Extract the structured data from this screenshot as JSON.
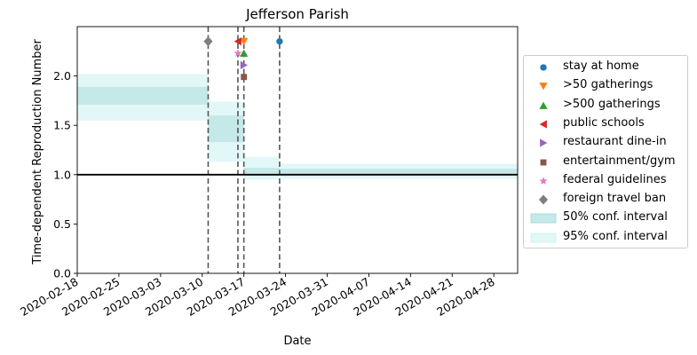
{
  "chart_data": {
    "type": "line",
    "title": "Jefferson Parish",
    "xlabel": "Date",
    "ylabel": "Time-dependent Reproduction Number",
    "x_range": [
      "2020-02-18",
      "2020-05-02"
    ],
    "ylim": [
      0.0,
      2.5
    ],
    "x_ticks": [
      "2020-02-18",
      "2020-02-25",
      "2020-03-03",
      "2020-03-10",
      "2020-03-17",
      "2020-03-24",
      "2020-03-31",
      "2020-04-07",
      "2020-04-14",
      "2020-04-21",
      "2020-04-28"
    ],
    "y_ticks": [
      "0.0",
      "0.5",
      "1.0",
      "1.5",
      "2.0"
    ],
    "reference_line": 1.0,
    "grid": false,
    "legend_position": "right, outside plot",
    "segments": [
      {
        "start": "2020-02-18",
        "end": "2020-03-11",
        "ci50": [
          1.71,
          1.89
        ],
        "ci95": [
          1.55,
          2.02
        ]
      },
      {
        "start": "2020-03-11",
        "end": "2020-03-17",
        "ci50": [
          1.33,
          1.6
        ],
        "ci95": [
          1.13,
          1.74
        ]
      },
      {
        "start": "2020-03-17",
        "end": "2020-03-23",
        "ci50": [
          0.99,
          1.07
        ],
        "ci95": [
          0.95,
          1.18
        ]
      },
      {
        "start": "2020-03-23",
        "end": "2020-05-02",
        "ci50": [
          1.0,
          1.06
        ],
        "ci95": [
          0.96,
          1.11
        ]
      }
    ],
    "intervention_lines": [
      "2020-03-11",
      "2020-03-16",
      "2020-03-17",
      "2020-03-23"
    ],
    "interventions": [
      {
        "name": "stay at home",
        "date": "2020-03-23",
        "y": 2.35,
        "marker": "circle",
        "color": "#1f77b4"
      },
      {
        "name": ">50 gatherings",
        "date": "2020-03-17",
        "y": 2.35,
        "marker": "triangle-down",
        "color": "#ff7f0e"
      },
      {
        "name": ">500 gatherings",
        "date": "2020-03-17",
        "y": 2.23,
        "marker": "triangle-up",
        "color": "#2ca02c"
      },
      {
        "name": "public schools",
        "date": "2020-03-16",
        "y": 2.35,
        "marker": "triangle-left",
        "color": "#d62728"
      },
      {
        "name": "restaurant dine-in",
        "date": "2020-03-17",
        "y": 2.11,
        "marker": "triangle-right",
        "color": "#9467bd"
      },
      {
        "name": "entertainment/gym",
        "date": "2020-03-17",
        "y": 1.99,
        "marker": "square",
        "color": "#8c564b"
      },
      {
        "name": "federal guidelines",
        "date": "2020-03-16",
        "y": 2.23,
        "marker": "star",
        "color": "#e377c2"
      },
      {
        "name": "foreign travel ban",
        "date": "2020-03-11",
        "y": 2.35,
        "marker": "diamond",
        "color": "#7f7f7f"
      }
    ],
    "band_legend": [
      {
        "name": "50% conf. interval",
        "color": "#c4e9e8"
      },
      {
        "name": "95% conf. interval",
        "color": "#e2f7f7"
      }
    ]
  }
}
